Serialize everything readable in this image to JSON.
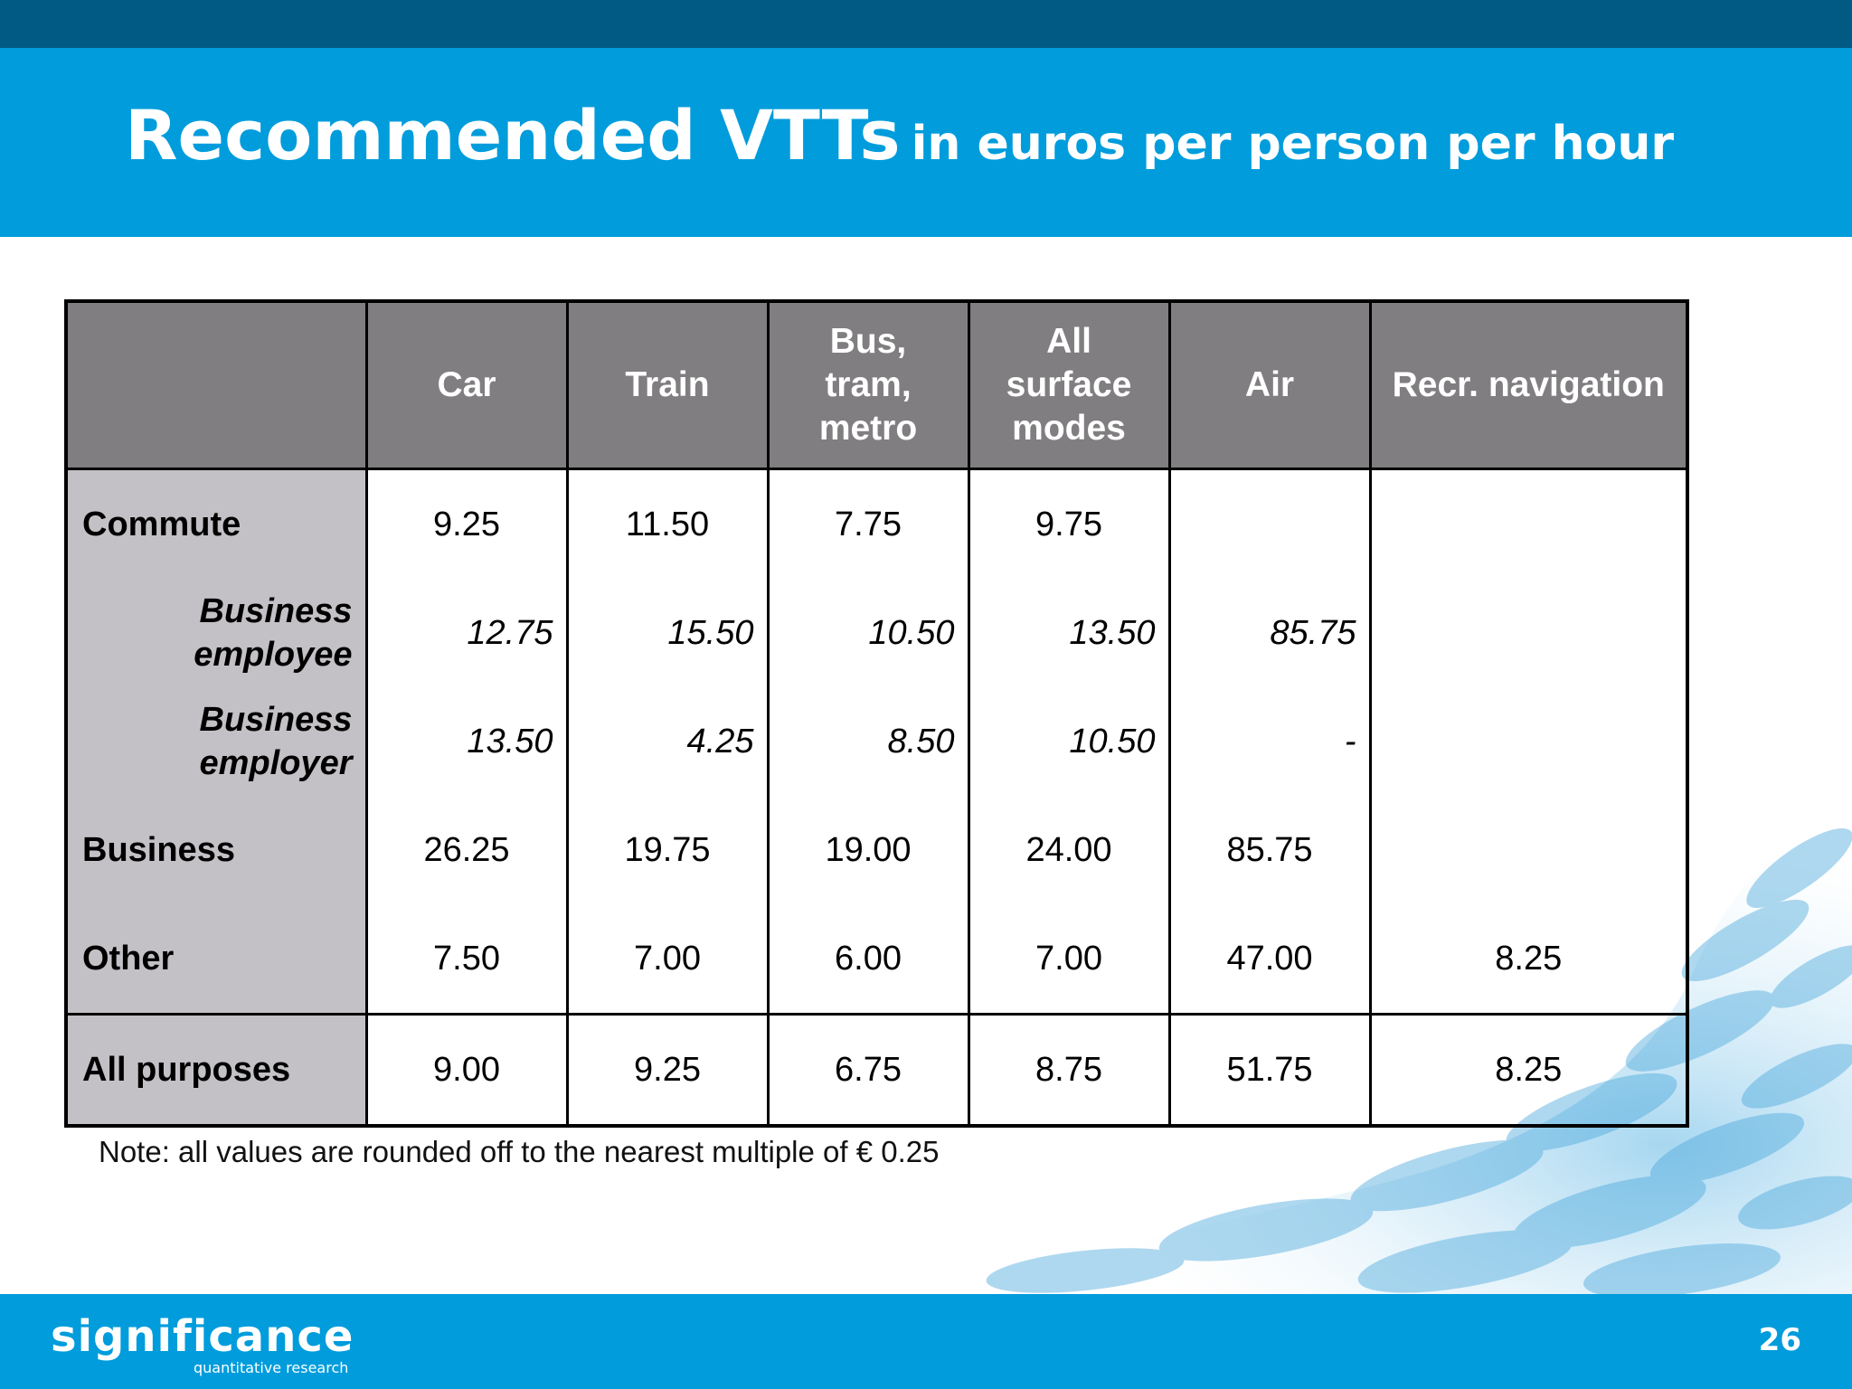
{
  "slide": {
    "title_main": "Recommended VTTs",
    "title_sub": "in euros per person per hour",
    "note": "Note: all values are rounded off to the nearest multiple of € 0.25",
    "page_number": "26"
  },
  "logo": {
    "name": "significance",
    "tagline": "quantitative research"
  },
  "table": {
    "headers": [
      "",
      "Car",
      "Train",
      "Bus,\ntram,\nmetro",
      "All\nsurface\nmodes",
      "Air",
      "Recr. navigation"
    ],
    "rows": [
      {
        "label": "Commute",
        "cells": [
          "9.25",
          "11.50",
          "7.75",
          "9.75",
          "",
          ""
        ]
      },
      {
        "label": "Business\nemployee",
        "cells": [
          "12.75",
          "15.50",
          "10.50",
          "13.50",
          "85.75",
          ""
        ]
      },
      {
        "label": "Business\nemployer",
        "cells": [
          "13.50",
          "4.25",
          "8.50",
          "10.50",
          "-",
          ""
        ]
      },
      {
        "label": "Business",
        "cells": [
          "26.25",
          "19.75",
          "19.00",
          "24.00",
          "85.75",
          ""
        ]
      },
      {
        "label": "Other",
        "cells": [
          "7.50",
          "7.00",
          "6.00",
          "7.00",
          "47.00",
          "8.25"
        ]
      },
      {
        "label": "All purposes",
        "cells": [
          "9.00",
          "9.25",
          "6.75",
          "8.75",
          "51.75",
          "8.25"
        ]
      }
    ]
  },
  "colors": {
    "header_blue": "#009cdc",
    "top_strip": "#005a84",
    "table_header_gray": "#807e80",
    "row_label_gray": "#c3c1c5"
  }
}
